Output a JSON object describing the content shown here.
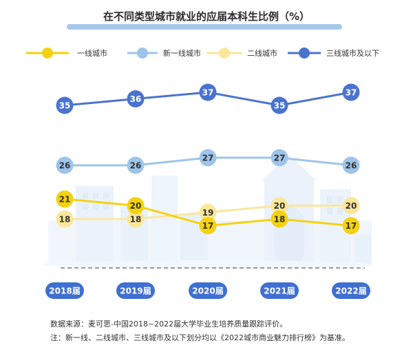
{
  "chart_data": {
    "type": "line",
    "title": "在不同类型城市就业的应届本科生比例（%）",
    "categories": [
      "2018届",
      "2019届",
      "2020届",
      "2021届",
      "2022届"
    ],
    "series": [
      {
        "name": "一线城市",
        "values": [
          21,
          20,
          17,
          18,
          17
        ],
        "color": "#f5d20f",
        "label_color": "#333333"
      },
      {
        "name": "新一线城市",
        "values": [
          26,
          26,
          27,
          27,
          26
        ],
        "color": "#9ec4ea",
        "label_color": "#333333"
      },
      {
        "name": "二线城市",
        "values": [
          18,
          18,
          19,
          20,
          20
        ],
        "color": "#fbe79a",
        "label_color": "#333333"
      },
      {
        "name": "三线城市及以下",
        "values": [
          35,
          36,
          37,
          35,
          37
        ],
        "color": "#4a73cf",
        "label_color": "#ffffff"
      }
    ],
    "grid": false,
    "legend": "top"
  },
  "notes": [
    "数据来源：麦可思-中国2018~2022届大学毕业生培养质量跟踪评价。",
    "注：新一线、二线城市、三线城市及以下划分均以《2022城市商业魅力排行榜》为基准。"
  ]
}
